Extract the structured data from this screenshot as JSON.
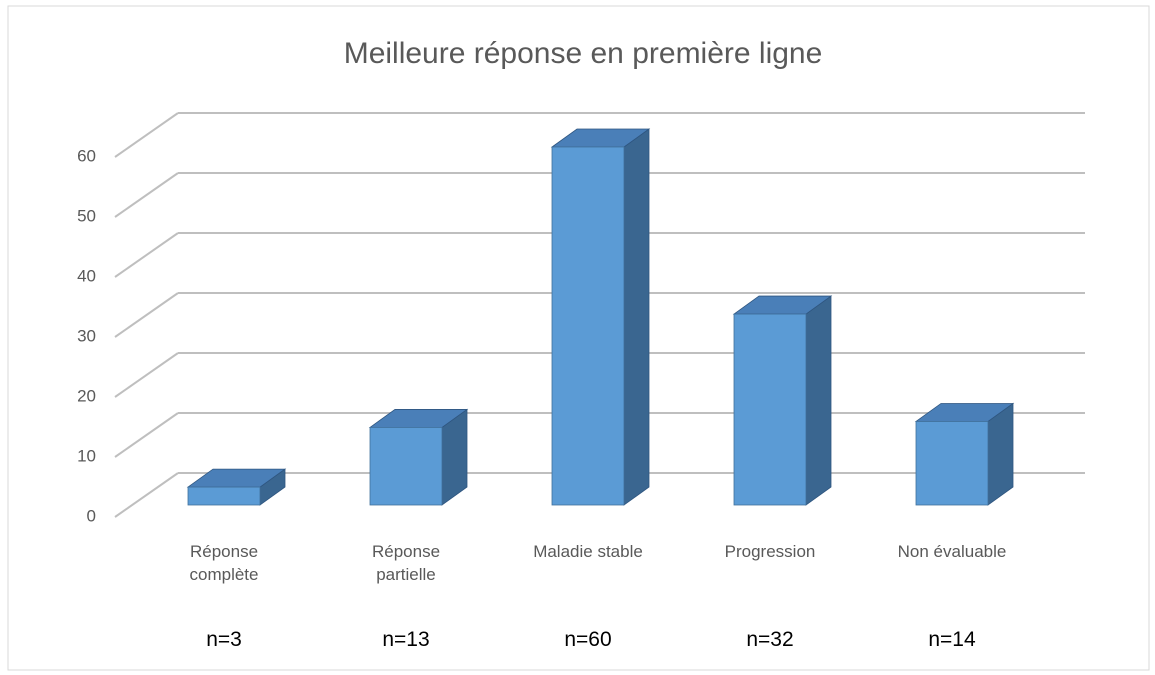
{
  "chart_data": {
    "type": "bar3d",
    "title": "Meilleure réponse en première ligne",
    "categories": [
      "Réponse complète",
      "Réponse partielle",
      "Maladie stable",
      "Progression",
      "Non évaluable"
    ],
    "values": [
      3,
      13,
      60,
      32,
      14
    ],
    "value_labels": [
      "n=3",
      "n=13",
      "n=60",
      "n=32",
      "n=14"
    ],
    "color": "#5b9bd5",
    "ylim": [
      0,
      60
    ],
    "yticks": [
      0,
      10,
      20,
      30,
      40,
      50,
      60
    ],
    "grid": true
  }
}
